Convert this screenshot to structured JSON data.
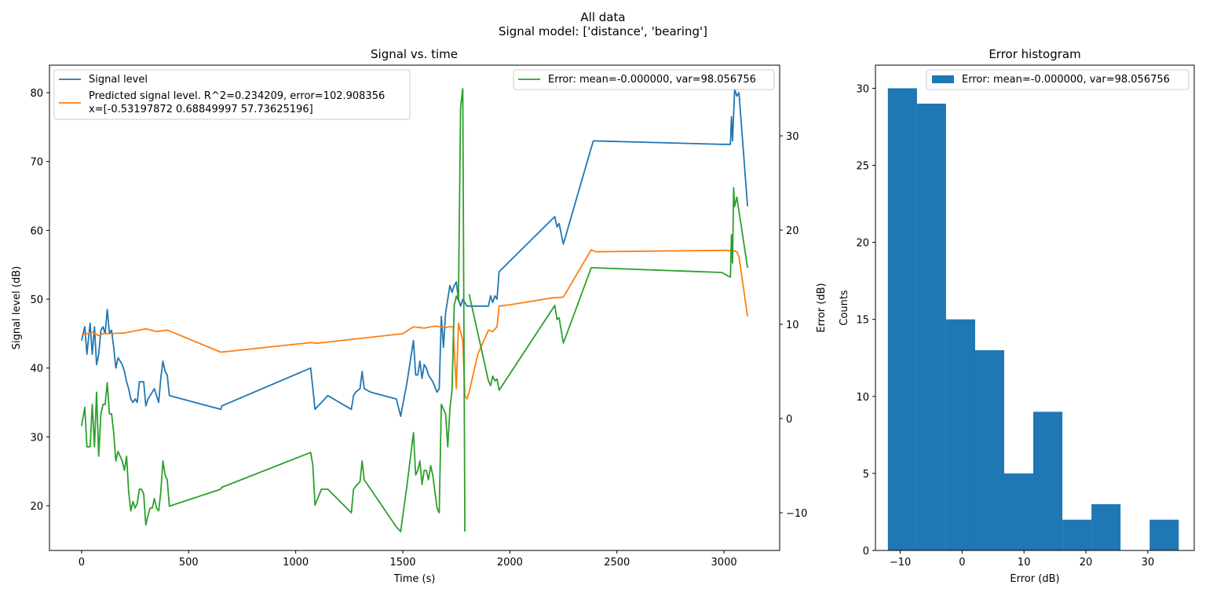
{
  "figure": {
    "suptitle_line1": "All data",
    "suptitle_line2": "Signal model: ['distance', 'bearing']"
  },
  "chart_data": [
    {
      "type": "line",
      "title": "Signal vs. time",
      "xlabel": "Time (s)",
      "ylabel": "Signal level (dB)",
      "y2label": "Error (dB)",
      "xlim": [
        -150,
        3260
      ],
      "ylim": [
        13.5,
        84
      ],
      "y2lim": [
        -14,
        37.5
      ],
      "xticks": [
        0,
        500,
        1000,
        1500,
        2000,
        2500,
        3000
      ],
      "yticks": [
        20,
        30,
        40,
        50,
        60,
        70,
        80
      ],
      "y2ticks": [
        -10,
        0,
        10,
        20,
        30
      ],
      "grid": false,
      "legend_position": "upper-left",
      "legend2_position": "upper-right",
      "series": [
        {
          "name": "Signal level",
          "axis": "left",
          "color": "#1f77b4",
          "x": [
            0,
            15,
            25,
            40,
            50,
            60,
            70,
            80,
            90,
            100,
            110,
            120,
            130,
            140,
            150,
            160,
            170,
            180,
            190,
            200,
            210,
            220,
            230,
            240,
            250,
            260,
            270,
            280,
            290,
            300,
            310,
            320,
            330,
            340,
            350,
            360,
            370,
            380,
            390,
            400,
            410,
            650,
            655,
            1070,
            1080,
            1090,
            1120,
            1150,
            1260,
            1270,
            1280,
            1300,
            1310,
            1320,
            1350,
            1470,
            1490,
            1520,
            1550,
            1560,
            1570,
            1580,
            1590,
            1600,
            1610,
            1620,
            1630,
            1640,
            1660,
            1670,
            1680,
            1690,
            1700,
            1710,
            1720,
            1730,
            1740,
            1750,
            1760,
            1770,
            1780,
            1800,
            1810,
            1850,
            1900,
            1910,
            1920,
            1930,
            1940,
            1950,
            2210,
            2220,
            2230,
            2250,
            2380,
            2390,
            2990,
            3030,
            3035,
            3040,
            3045,
            3050,
            3060,
            3070,
            3110
          ],
          "y": [
            44,
            46,
            42,
            46.5,
            42,
            46,
            40.5,
            42,
            45.5,
            46,
            45,
            48.5,
            45,
            45.5,
            43,
            40,
            41.5,
            41,
            40.5,
            39.5,
            38,
            37,
            35.5,
            35,
            35.5,
            35,
            38,
            38,
            38,
            34.5,
            35.5,
            36,
            36.5,
            37,
            36,
            35,
            38.5,
            41,
            39.5,
            39,
            36,
            34,
            34.5,
            40,
            37,
            34,
            35,
            36,
            34,
            36,
            36.5,
            37,
            39.5,
            37,
            36.5,
            35.5,
            33,
            38,
            44,
            39,
            39,
            41,
            38.5,
            40.5,
            40,
            39,
            38.5,
            38,
            36.5,
            37,
            47.5,
            43,
            48,
            50,
            52,
            51,
            52,
            52.5,
            50,
            49,
            50,
            49,
            49,
            49,
            49,
            50.5,
            49.5,
            50.5,
            50,
            54,
            62,
            60.5,
            61,
            58,
            72,
            73,
            72.5,
            72.5,
            76.5,
            73,
            77,
            80.5,
            79.5,
            80,
            63.5
          ]
        },
        {
          "name": "Predicted signal level. R^2=0.234209, error=102.908356",
          "name_line2": "x=[-0.53197872  0.68849997 57.73625196]",
          "axis": "left",
          "color": "#ff7f0e",
          "x": [
            0,
            50,
            80,
            100,
            130,
            200,
            250,
            300,
            350,
            400,
            410,
            650,
            1070,
            1100,
            1300,
            1500,
            1550,
            1600,
            1650,
            1700,
            1720,
            1735,
            1740,
            1750,
            1760,
            1780,
            1790,
            1800,
            1810,
            1850,
            1900,
            1920,
            1940,
            1950,
            2000,
            2200,
            2250,
            2380,
            2400,
            3000,
            3050,
            3060,
            3070,
            3110
          ],
          "y": [
            44.8,
            45.2,
            44.7,
            45.0,
            45.0,
            45.1,
            45.4,
            45.7,
            45.3,
            45.5,
            45.4,
            42.3,
            43.7,
            43.6,
            44.3,
            45.0,
            46.0,
            45.8,
            46.1,
            45.9,
            46.0,
            46.0,
            43.0,
            37.0,
            46.5,
            44.0,
            36.0,
            35.5,
            36.5,
            42.0,
            45.5,
            45.3,
            46.0,
            49.0,
            49.2,
            50.2,
            50.3,
            57.2,
            56.9,
            57.1,
            57.0,
            56.9,
            56.2,
            47.5
          ]
        },
        {
          "name": "Error: mean=-0.000000, var=98.056756",
          "axis": "right",
          "color": "#2ca02c",
          "x": [
            0,
            15,
            25,
            40,
            50,
            60,
            70,
            80,
            90,
            100,
            110,
            120,
            130,
            140,
            150,
            160,
            170,
            180,
            190,
            200,
            210,
            220,
            230,
            240,
            250,
            260,
            270,
            280,
            290,
            300,
            310,
            320,
            330,
            340,
            350,
            360,
            370,
            380,
            390,
            400,
            410,
            650,
            655,
            1070,
            1080,
            1090,
            1120,
            1150,
            1260,
            1270,
            1280,
            1300,
            1310,
            1320,
            1350,
            1470,
            1490,
            1520,
            1550,
            1560,
            1570,
            1580,
            1590,
            1600,
            1610,
            1620,
            1630,
            1640,
            1660,
            1670,
            1680,
            1690,
            1700,
            1710,
            1720,
            1730,
            1740,
            1750,
            1760,
            1770,
            1780,
            1790
          ],
          "y": [
            -0.8,
            1.2,
            -3,
            -3,
            1.5,
            -3,
            2.8,
            -4,
            0.5,
            1.5,
            1.5,
            3.8,
            0.5,
            0.5,
            -1.5,
            -4.5,
            -3.5,
            -4,
            -4.5,
            -5.5,
            -4,
            -7.8,
            -9.8,
            -8.8,
            -9.5,
            -9,
            -7.5,
            -7.5,
            -8,
            -11.3,
            -10.3,
            -9.5,
            -9.5,
            -8.5,
            -9.5,
            -9.8,
            -7.8,
            -4.5,
            -6,
            -6.5,
            -9.3,
            -7.5,
            -7.3,
            -3.6,
            -5,
            -9.2,
            -7.5,
            -7.5,
            -10,
            -7.5,
            -7.2,
            -6.7,
            -4.5,
            -6.5,
            -7.5,
            -11.5,
            -12,
            -7,
            -1.5,
            -6,
            -5.5,
            -4.5,
            -7,
            -5.5,
            -5.5,
            -6.5,
            -5,
            -6,
            -9.5,
            -10,
            1.5,
            1,
            0.5,
            -3,
            1,
            3,
            12,
            13,
            12.5,
            33,
            35,
            -12
          ]
        },
        {
          "name": "",
          "axis": "right",
          "color": "#2ca02c",
          "x": [
            1810,
            1900,
            1910,
            1920,
            1930,
            1940,
            1950,
            2210,
            2220,
            2230,
            2250,
            2380,
            2390,
            2990,
            3030,
            3035,
            3040,
            3045,
            3050,
            3060,
            3070,
            3110
          ],
          "y": [
            13.2,
            4,
            3.5,
            4.5,
            4,
            4.2,
            3,
            12,
            10.5,
            10.7,
            8,
            16,
            16,
            15.5,
            15,
            19.5,
            16.5,
            24.5,
            22.5,
            23.5,
            22,
            16
          ]
        }
      ]
    },
    {
      "type": "bar",
      "title": "Error histogram",
      "xlabel": "Error (dB)",
      "ylabel": "Counts",
      "xlim": [
        -14,
        37.5
      ],
      "ylim": [
        0,
        31.5
      ],
      "xticks": [
        -10,
        0,
        10,
        20,
        30
      ],
      "yticks": [
        0,
        5,
        10,
        15,
        20,
        25,
        30
      ],
      "legend_position": "upper-right",
      "series": [
        {
          "name": "Error: mean=-0.000000, var=98.056756",
          "color": "#1f77b4",
          "bin_edges": [
            -12.0,
            -7.3,
            -2.6,
            2.1,
            6.8,
            11.5,
            16.2,
            20.9,
            25.6,
            30.3,
            35.0
          ],
          "counts": [
            30,
            29,
            15,
            13,
            5,
            9,
            2,
            3,
            0,
            2
          ]
        }
      ]
    }
  ]
}
